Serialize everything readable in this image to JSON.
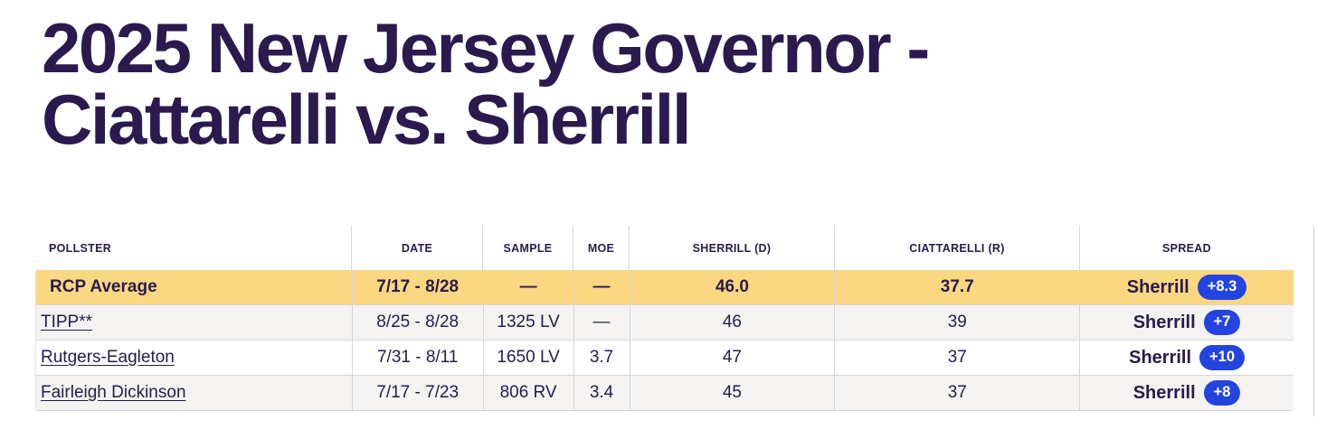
{
  "title": {
    "line1": "2025 New Jersey Governor -",
    "line2": "Ciattarelli vs. Sherrill"
  },
  "colors": {
    "title_text": "#2a1a4e",
    "header_text": "#2a1a4e",
    "cell_text": "#241c4c",
    "average_row_bg": "#fbd781",
    "alt_row_bg": "#f4f3f2",
    "row_bg": "#ffffff",
    "spread_pill_bg": "#2444e0",
    "spread_pill_text": "#ffffff",
    "grid_border": "#d6d6d6"
  },
  "table": {
    "columns": [
      {
        "key": "pollster",
        "label": "POLLSTER"
      },
      {
        "key": "date",
        "label": "DATE"
      },
      {
        "key": "sample",
        "label": "SAMPLE"
      },
      {
        "key": "moe",
        "label": "MOE"
      },
      {
        "key": "dem",
        "label": "SHERRILL (D)"
      },
      {
        "key": "rep",
        "label": "CIATTARELLI (R)"
      },
      {
        "key": "spread",
        "label": "SPREAD"
      }
    ],
    "rows": [
      {
        "pollster": "RCP Average",
        "is_average": true,
        "is_link": false,
        "date": "7/17 - 8/28",
        "sample": "—",
        "moe": "—",
        "dem": "46.0",
        "rep": "37.7",
        "spread_leader": "Sherrill",
        "spread_value": "+8.3"
      },
      {
        "pollster": "TIPP**",
        "is_average": false,
        "is_link": true,
        "date": "8/25 - 8/28",
        "sample": "1325 LV",
        "moe": "—",
        "dem": "46",
        "rep": "39",
        "spread_leader": "Sherrill",
        "spread_value": "+7"
      },
      {
        "pollster": "Rutgers-Eagleton",
        "is_average": false,
        "is_link": true,
        "date": "7/31 - 8/11",
        "sample": "1650 LV",
        "moe": "3.7",
        "dem": "47",
        "rep": "37",
        "spread_leader": "Sherrill",
        "spread_value": "+10"
      },
      {
        "pollster": "Fairleigh Dickinson",
        "is_average": false,
        "is_link": true,
        "date": "7/17 - 7/23",
        "sample": "806 RV",
        "moe": "3.4",
        "dem": "45",
        "rep": "37",
        "spread_leader": "Sherrill",
        "spread_value": "+8"
      }
    ]
  }
}
